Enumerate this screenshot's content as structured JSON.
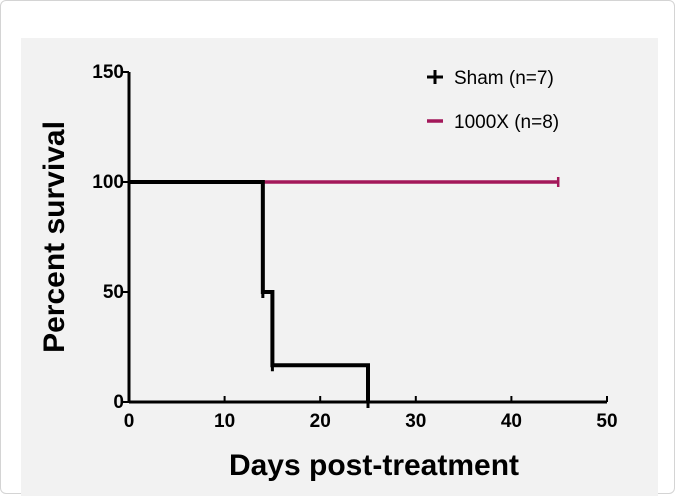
{
  "chart_data": {
    "type": "line",
    "subtype": "kaplan-meier step",
    "title": "",
    "xlabel": "Days post-treatment",
    "ylabel": "Percent survival",
    "xlim": [
      0,
      50
    ],
    "ylim": [
      0,
      150
    ],
    "x_ticks": [
      0,
      10,
      20,
      30,
      40,
      50
    ],
    "y_ticks": [
      0,
      50,
      100,
      150
    ],
    "grid": false,
    "legend_position": "top-right",
    "series": [
      {
        "name": "Sham (n=7)",
        "color": "#000000",
        "marker": "plus",
        "points": [
          [
            0,
            100
          ],
          [
            14,
            100
          ],
          [
            14,
            50
          ],
          [
            15,
            50
          ],
          [
            15,
            16.7
          ],
          [
            25,
            16.7
          ],
          [
            25,
            0
          ]
        ],
        "censor_ticks": [
          [
            14,
            50
          ],
          [
            15,
            16.7
          ],
          [
            25,
            0
          ]
        ]
      },
      {
        "name": "1000X (n=8)",
        "color": "#a3185a",
        "marker": "dash",
        "points": [
          [
            0,
            100
          ],
          [
            45,
            100
          ]
        ],
        "censor_ticks": [
          [
            45,
            100
          ]
        ]
      }
    ]
  }
}
